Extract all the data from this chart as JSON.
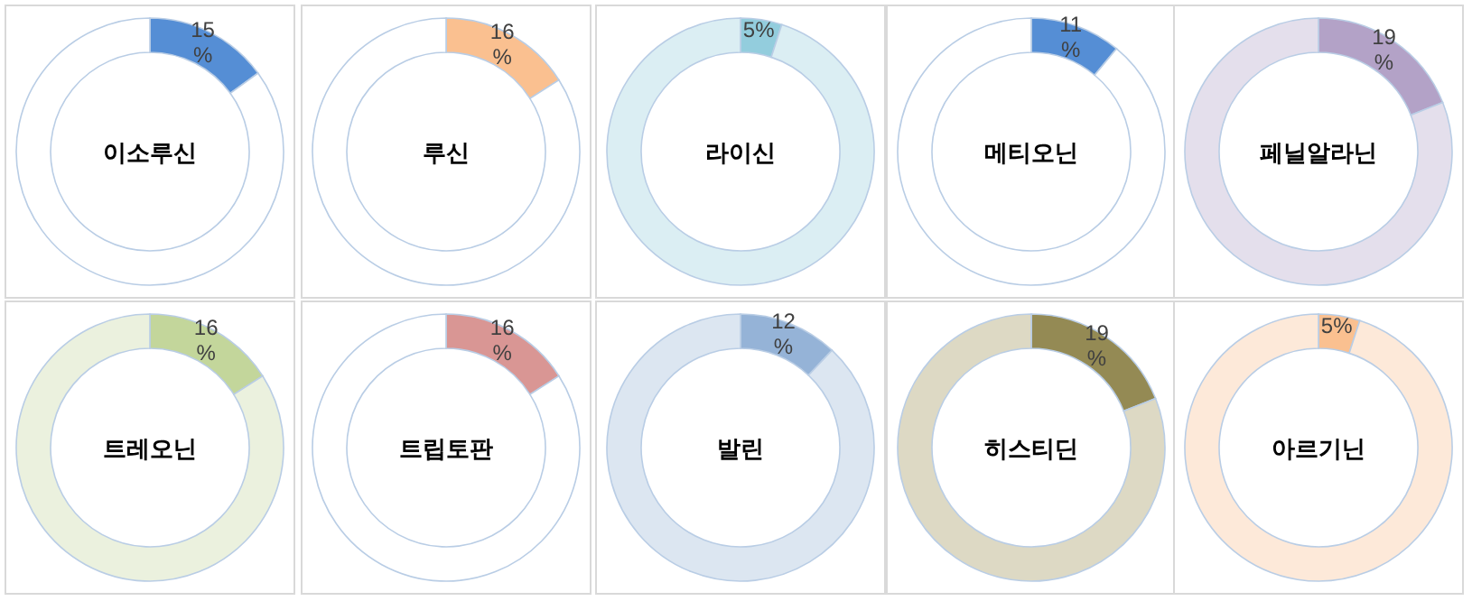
{
  "chart_data": [
    {
      "type": "donut",
      "title": "이소루신",
      "categories": [
        null,
        null
      ],
      "values": [
        15,
        85
      ],
      "colors": [
        "#558ed5",
        "#ffffff"
      ],
      "value_labels": [
        "15%",
        null
      ]
    },
    {
      "type": "donut",
      "title": "루신",
      "categories": [
        null,
        null
      ],
      "values": [
        16,
        84
      ],
      "colors": [
        "#fac090",
        "#ffffff"
      ],
      "value_labels": [
        "16%",
        null
      ]
    },
    {
      "type": "donut",
      "title": "라이신",
      "categories": [
        null,
        null
      ],
      "values": [
        5,
        95
      ],
      "colors": [
        "#93cddd",
        "#dbeef3"
      ],
      "value_labels": [
        "5%",
        null
      ]
    },
    {
      "type": "donut",
      "title": "메티오닌",
      "categories": [
        null,
        null
      ],
      "values": [
        11,
        89
      ],
      "colors": [
        "#558ed5",
        "#ffffff"
      ],
      "value_labels": [
        "11%",
        null
      ]
    },
    {
      "type": "donut",
      "title": "페닐알라닌",
      "categories": [
        null,
        null
      ],
      "values": [
        19,
        81
      ],
      "colors": [
        "#b3a2c7",
        "#e4dfec"
      ],
      "value_labels": [
        "19%",
        null
      ]
    },
    {
      "type": "donut",
      "title": "트레오닌",
      "categories": [
        null,
        null
      ],
      "values": [
        16,
        84
      ],
      "colors": [
        "#c3d69b",
        "#ebf1de"
      ],
      "value_labels": [
        "16%",
        null
      ]
    },
    {
      "type": "donut",
      "title": "트립토판",
      "categories": [
        null,
        null
      ],
      "values": [
        16,
        84
      ],
      "colors": [
        "#d99694",
        "#ffffff"
      ],
      "value_labels": [
        "16%",
        null
      ]
    },
    {
      "type": "donut",
      "title": "발린",
      "categories": [
        null,
        null
      ],
      "values": [
        12,
        88
      ],
      "colors": [
        "#95b3d7",
        "#dce6f1"
      ],
      "value_labels": [
        "12%",
        null
      ]
    },
    {
      "type": "donut",
      "title": "히스티딘",
      "categories": [
        null,
        null
      ],
      "values": [
        19,
        81
      ],
      "colors": [
        "#948a54",
        "#ddd9c4"
      ],
      "value_labels": [
        "19%",
        null
      ]
    },
    {
      "type": "donut",
      "title": "아르기닌",
      "categories": [
        null,
        null
      ],
      "values": [
        5,
        95
      ],
      "colors": [
        "#fac090",
        "#fde9d9"
      ],
      "value_labels": [
        "5%",
        null
      ]
    }
  ]
}
